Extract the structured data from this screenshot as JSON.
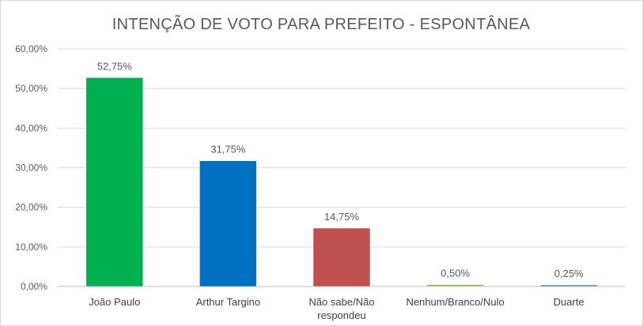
{
  "chart_data": {
    "type": "bar",
    "title": "INTENÇÃO DE VOTO PARA PREFEITO - ESPONTÂNEA",
    "categories": [
      [
        "João Paulo"
      ],
      [
        "Arthur Targino"
      ],
      [
        "Não sabe/Não",
        "respondeu"
      ],
      [
        "Nenhum/Branco/Nulo"
      ],
      [
        "Duarte"
      ]
    ],
    "values": [
      52.75,
      31.75,
      14.75,
      0.5,
      0.25
    ],
    "value_labels": [
      "52,75%",
      "31,75%",
      "14,75%",
      "0,50%",
      "0,25%"
    ],
    "colors": [
      "#00b050",
      "#0070c0",
      "#c0504d",
      "#9bbb59",
      "#4f81bd"
    ],
    "ylim": [
      0,
      60
    ],
    "yticks": [
      0,
      10,
      20,
      30,
      40,
      50,
      60
    ],
    "ytick_labels": [
      "0,00%",
      "10,00%",
      "20,00%",
      "30,00%",
      "40,00%",
      "50,00%",
      "60,00%"
    ],
    "grid": true,
    "xlabel": "",
    "ylabel": ""
  }
}
